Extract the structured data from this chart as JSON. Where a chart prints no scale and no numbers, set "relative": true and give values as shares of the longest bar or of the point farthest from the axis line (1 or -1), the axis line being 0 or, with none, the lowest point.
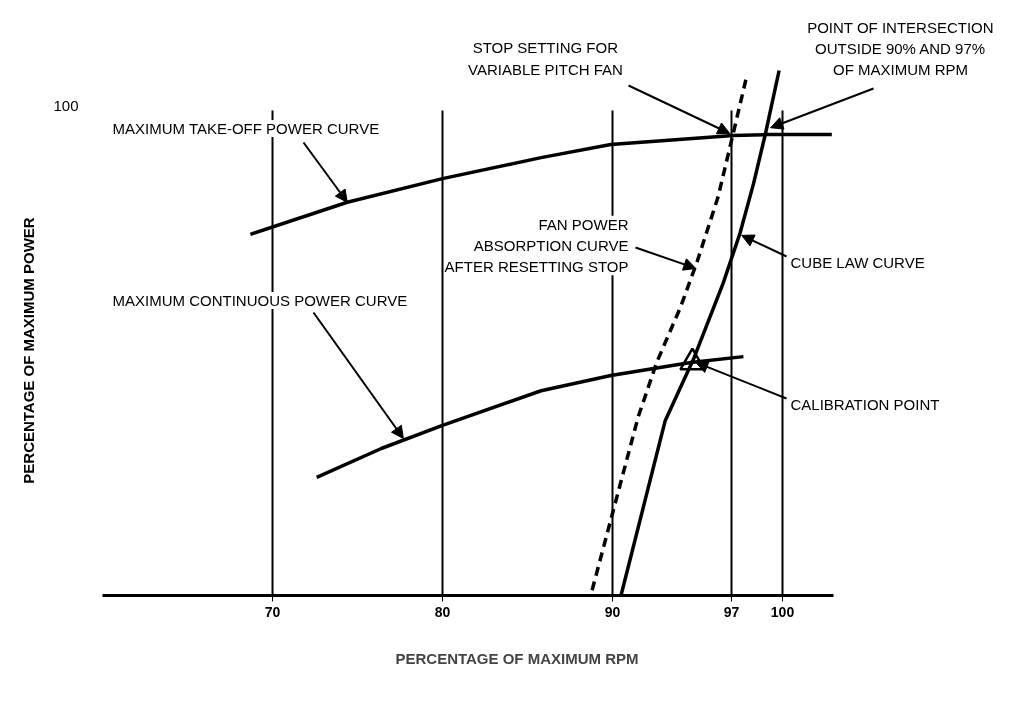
{
  "chart_data": {
    "type": "line",
    "relative": true,
    "xlabel": "PERCENTAGE OF MAXIMUM RPM",
    "ylabel": "PERCENTAGE OF MAXIMUM POWER",
    "xlim": [
      60,
      103
    ],
    "xticks": [
      70,
      80,
      90,
      97,
      100
    ],
    "grid": "x",
    "series": [
      {
        "color": "#000000",
        "line_style": "solid",
        "x": [
          68.7,
          74.4,
          80.0,
          85.8,
          89.9,
          97.1,
          99.1,
          102.9
        ],
        "values": [
          0.688,
          0.749,
          0.794,
          0.834,
          0.859,
          0.876,
          0.878,
          0.878
        ]
      },
      {
        "color": "#000000",
        "line_style": "solid",
        "x": [
          72.6,
          76.4,
          80.0,
          85.8,
          89.9,
          94.6,
          97.7
        ],
        "values": [
          0.225,
          0.28,
          0.324,
          0.39,
          0.419,
          0.444,
          0.455
        ]
      },
      {
        "color": "#000000",
        "line_style": "solid",
        "x": [
          90.5,
          93.1,
          94.8,
          96.5,
          97.5,
          98.3,
          99.0,
          99.8
        ],
        "values": [
          0.0,
          0.333,
          0.453,
          0.594,
          0.69,
          0.785,
          0.88,
          1.0
        ]
      },
      {
        "color": "#000000",
        "line_style": "dashed",
        "x": [
          88.8,
          91.5,
          92.6,
          94.0,
          95.0,
          96.2,
          97.1,
          97.9
        ],
        "values": [
          0.01,
          0.339,
          0.444,
          0.549,
          0.638,
          0.758,
          0.88,
          0.99
        ]
      },
      {
        "type": "scatter",
        "color": "#000000",
        "marker": "triangle",
        "x": [
          94.7
        ],
        "values": [
          0.444
        ]
      }
    ],
    "annotations": [
      {
        "text": "MAXIMUM TAKE-OFF POWER CURVE",
        "x": 74.4,
        "y": 0.749
      },
      {
        "text": "MAXIMUM CONTINUOUS POWER CURVE",
        "x": 77.7,
        "y": 0.299
      },
      {
        "text": "FAN POWER\nABSORPTION CURVE\nAFTER RESETTING STOP",
        "x": 94.9,
        "y": 0.623
      },
      {
        "text": "CUBE LAW CURVE",
        "x": 97.6,
        "y": 0.686
      },
      {
        "text": "CALIBRATION POINT",
        "x": 94.9,
        "y": 0.444
      },
      {
        "text": "STOP SETTING FOR\nVARIABLE PITCH FAN",
        "x": 96.9,
        "y": 0.88
      },
      {
        "text": "POINT OF INTERSECTION\nOUTSIDE 90% AND 97%\nOF MAXIMUM RPM",
        "x": 99.3,
        "y": 0.891
      },
      "100"
    ]
  }
}
